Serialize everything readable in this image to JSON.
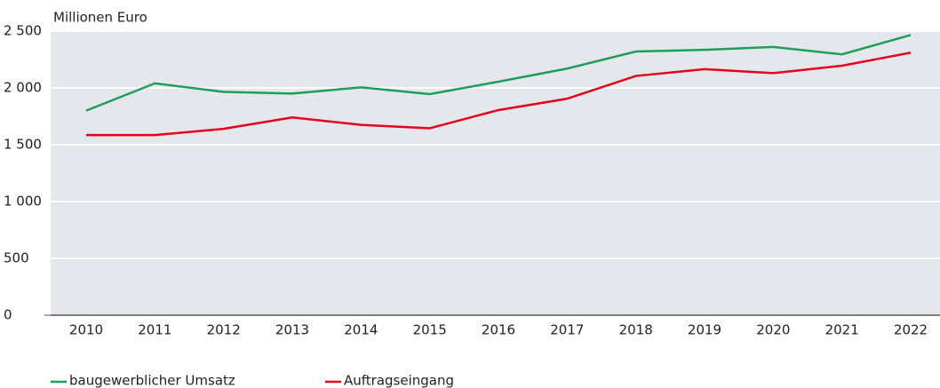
{
  "chart_data": {
    "type": "line",
    "y_axis_label": "Millionen Euro",
    "categories": [
      "2010",
      "2011",
      "2012",
      "2013",
      "2014",
      "2015",
      "2016",
      "2017",
      "2018",
      "2019",
      "2020",
      "2021",
      "2022"
    ],
    "series": [
      {
        "name": "baugewerblicher Umsatz",
        "color": "#1e9e5a",
        "values": [
          1800,
          2040,
          1965,
          1950,
          2005,
          1945,
          2055,
          2170,
          2320,
          2335,
          2360,
          2295,
          2465
        ]
      },
      {
        "name": "Auftragseingang",
        "color": "#e3001b",
        "values": [
          1585,
          1585,
          1640,
          1740,
          1675,
          1645,
          1805,
          1905,
          2105,
          2165,
          2130,
          2195,
          2310
        ]
      }
    ],
    "ylim": [
      0,
      2500
    ],
    "yticks": [
      0,
      500,
      {
        "value": 1000,
        "label": "1 000"
      },
      {
        "value": 1500,
        "label": "1 500"
      },
      {
        "value": 2000,
        "label": "2 000"
      },
      {
        "value": 2500,
        "label": "2 500"
      }
    ],
    "grid": true
  }
}
